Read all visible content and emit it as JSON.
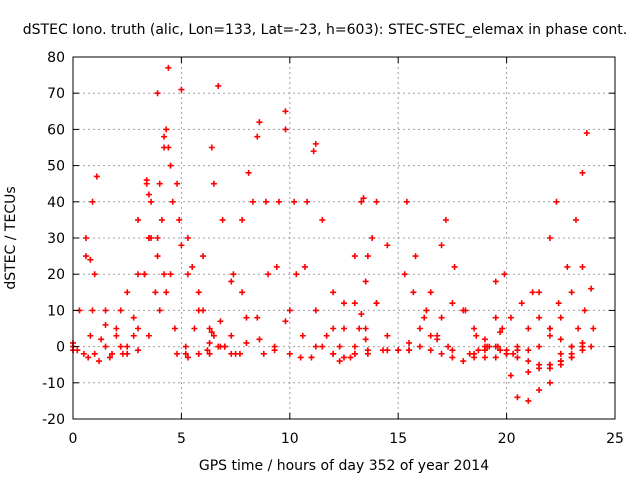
{
  "chart_data": {
    "type": "scatter",
    "title": "dSTEC Iono. truth (alic, Lon=133, Lat=-23, h=603): STEC-STEC_elemax in phase cont.",
    "xlabel": "GPS time / hours of day 352 of year 2014",
    "ylabel": "dSTEC  / TECUs",
    "xlim": [
      0,
      25
    ],
    "ylim": [
      -20,
      80
    ],
    "xticks": [
      0,
      5,
      10,
      15,
      20,
      25
    ],
    "yticks": [
      -20,
      -10,
      0,
      10,
      20,
      30,
      40,
      50,
      60,
      70,
      80
    ],
    "grid": true,
    "marker": "+",
    "color": "#ff0000",
    "series": [
      {
        "x": [
          0.0,
          0.3,
          0.6,
          0.9,
          1.1
        ],
        "y": [
          0,
          10,
          25,
          40,
          47
        ]
      },
      {
        "x": [
          0.0,
          0.5,
          1.0,
          1.5,
          2.0,
          2.5,
          3.0,
          3.4
        ],
        "y": [
          -1,
          -2,
          -2,
          0,
          5,
          15,
          35,
          46
        ]
      },
      {
        "x": [
          0.6,
          0.9,
          1.3,
          1.8,
          2.3,
          2.8,
          3.3,
          3.6
        ],
        "y": [
          30,
          10,
          2,
          -2,
          -2,
          3,
          20,
          40
        ]
      },
      {
        "x": [
          0.8,
          1.0,
          1.5,
          2.0,
          2.5,
          3.0,
          3.5,
          3.9
        ],
        "y": [
          24,
          20,
          10,
          3,
          0,
          5,
          30,
          70
        ]
      },
      {
        "x": [
          0.0,
          0.8,
          1.5,
          2.2,
          3.0,
          3.5,
          4.0,
          4.2
        ],
        "y": [
          1,
          3,
          6,
          10,
          20,
          30,
          45,
          55
        ]
      },
      {
        "x": [
          0.2,
          0.7,
          1.2,
          1.7,
          2.2,
          2.8,
          3.3
        ],
        "y": [
          -1,
          -3,
          -4,
          -3,
          0,
          8,
          20
        ]
      },
      {
        "x": [
          3.4,
          3.6,
          3.9,
          4.1,
          4.3,
          4.4
        ],
        "y": [
          45,
          30,
          25,
          35,
          60,
          77
        ]
      },
      {
        "x": [
          3.5,
          3.9,
          4.3,
          4.7,
          5.2,
          5.8,
          6.3
        ],
        "y": [
          42,
          30,
          15,
          5,
          0,
          -2,
          -2
        ]
      },
      {
        "x": [
          3.8,
          4.2,
          4.6,
          5.0
        ],
        "y": [
          15,
          20,
          40,
          71
        ]
      },
      {
        "x": [
          4.2,
          4.5,
          4.9,
          5.3,
          5.8,
          6.4,
          7.0,
          7.7
        ],
        "y": [
          58,
          50,
          35,
          20,
          10,
          4,
          0,
          -2
        ]
      },
      {
        "x": [
          4.4,
          4.8,
          5.3,
          5.8,
          6.3,
          6.8,
          7.3
        ],
        "y": [
          55,
          45,
          30,
          15,
          5,
          0,
          -2
        ]
      },
      {
        "x": [
          2.5,
          3.0,
          3.5,
          4.0,
          4.5,
          5.0,
          5.5,
          6.0,
          6.5,
          7.0
        ],
        "y": [
          -2,
          -1,
          3,
          10,
          20,
          28,
          22,
          10,
          3,
          0
        ]
      },
      {
        "x": [
          4.8,
          5.2,
          5.6,
          6.0,
          6.4,
          6.7
        ],
        "y": [
          -2,
          -2,
          5,
          25,
          55,
          72
        ]
      },
      {
        "x": [
          6.5,
          6.9,
          7.4,
          8.0,
          8.6,
          9.3,
          10.0
        ],
        "y": [
          45,
          35,
          20,
          8,
          2,
          -1,
          -2
        ]
      },
      {
        "x": [
          5.3,
          5.8,
          6.3,
          6.8,
          7.3,
          7.8,
          8.1
        ],
        "y": [
          -3,
          -2,
          1,
          7,
          18,
          35,
          48
        ]
      },
      {
        "x": [
          6.2,
          6.7,
          7.3,
          7.8,
          8.3,
          8.6
        ],
        "y": [
          -1,
          0,
          3,
          15,
          40,
          62
        ]
      },
      {
        "x": [
          8.5,
          8.9,
          9.4,
          10.0,
          10.6,
          11.2,
          12.0
        ],
        "y": [
          58,
          40,
          22,
          10,
          3,
          0,
          -2
        ]
      },
      {
        "x": [
          7.5,
          8.0,
          8.5,
          9.0,
          9.5,
          9.8
        ],
        "y": [
          -2,
          1,
          8,
          20,
          40,
          65
        ]
      },
      {
        "x": [
          9.8,
          10.2,
          10.7,
          11.2,
          11.7,
          12.3,
          13.0,
          13.6
        ],
        "y": [
          60,
          40,
          22,
          10,
          3,
          0,
          -2,
          -2
        ]
      },
      {
        "x": [
          8.8,
          9.3,
          9.8,
          10.3,
          10.8,
          11.2
        ],
        "y": [
          -2,
          0,
          7,
          20,
          40,
          56
        ]
      },
      {
        "x": [
          11.1,
          11.5,
          12.0,
          12.5,
          13.0,
          13.6,
          14.3
        ],
        "y": [
          54,
          35,
          15,
          5,
          0,
          -1,
          -1
        ]
      },
      {
        "x": [
          10.5,
          11.0,
          11.5,
          12.0,
          12.5,
          13.0,
          13.4
        ],
        "y": [
          -3,
          -3,
          0,
          5,
          12,
          25,
          41
        ]
      },
      {
        "x": [
          12.3,
          12.8,
          13.2,
          13.5,
          13.8,
          14.0
        ],
        "y": [
          -4,
          -3,
          5,
          18,
          30,
          40
        ]
      },
      {
        "x": [
          13.3,
          13.6,
          14.0,
          14.5,
          15.0,
          15.5
        ],
        "y": [
          40,
          25,
          12,
          3,
          -1,
          -1
        ]
      },
      {
        "x": [
          12.0,
          12.5,
          13.0,
          13.5,
          14.0,
          14.5
        ],
        "y": [
          -2,
          -3,
          -2,
          2,
          12,
          28
        ]
      },
      {
        "x": [
          13.0,
          13.3,
          13.5
        ],
        "y": [
          12,
          9,
          5
        ]
      },
      {
        "x": [
          15.4,
          15.8,
          16.3,
          16.8,
          17.3
        ],
        "y": [
          40,
          25,
          10,
          3,
          0
        ]
      },
      {
        "x": [
          15.3,
          15.7,
          16.2,
          16.8,
          17.5,
          18.3,
          19.0,
          19.6
        ],
        "y": [
          20,
          15,
          8,
          2,
          -1,
          -2,
          -1,
          0
        ]
      },
      {
        "x": [
          14.5,
          15.0,
          15.5,
          16.0,
          16.5,
          17.0
        ],
        "y": [
          -1,
          -1,
          1,
          5,
          15,
          28
        ]
      },
      {
        "x": [
          15.5,
          16.0,
          16.5,
          17.0,
          17.5,
          18.0,
          18.5,
          19.0,
          19.5,
          20.0
        ],
        "y": [
          -1,
          0,
          3,
          8,
          12,
          10,
          5,
          2,
          0,
          -1
        ]
      },
      {
        "x": [
          17.2,
          17.6,
          18.1,
          18.6,
          19.1,
          19.7,
          20.3
        ],
        "y": [
          35,
          22,
          10,
          3,
          0,
          -1,
          -2
        ]
      },
      {
        "x": [
          16.5,
          17.0,
          17.5,
          18.0,
          18.5,
          19.0,
          19.5,
          19.9
        ],
        "y": [
          -1,
          -2,
          -3,
          -4,
          -3,
          0,
          8,
          20
        ]
      },
      {
        "x": [
          18.7,
          19.2,
          19.7,
          20.2,
          20.7,
          21.2
        ],
        "y": [
          -1,
          0,
          4,
          8,
          12,
          15
        ]
      },
      {
        "x": [
          19.5,
          19.8,
          20.2,
          20.5,
          21.0,
          21.5,
          22.0
        ],
        "y": [
          18,
          5,
          -8,
          -14,
          -15,
          -12,
          -10
        ]
      },
      {
        "x": [
          18.5,
          19.0,
          19.5,
          20.0,
          20.5,
          21.0,
          21.5,
          22.0,
          22.3
        ],
        "y": [
          -2,
          -3,
          -3,
          -2,
          0,
          5,
          15,
          30,
          40
        ]
      },
      {
        "x": [
          20.5,
          21.0,
          21.5,
          22.0,
          22.5,
          23.0,
          23.5
        ],
        "y": [
          -1,
          -1,
          0,
          3,
          8,
          15,
          22
        ]
      },
      {
        "x": [
          22.0,
          22.4,
          22.8,
          23.2,
          23.5,
          23.7
        ],
        "y": [
          5,
          12,
          22,
          35,
          48,
          59
        ]
      },
      {
        "x": [
          21.5,
          22.0,
          22.5,
          23.0,
          23.5,
          24.0
        ],
        "y": [
          8,
          5,
          2,
          0,
          1,
          5
        ]
      },
      {
        "x": [
          22.5,
          23.0,
          23.3,
          23.6,
          23.9
        ],
        "y": [
          -2,
          0,
          5,
          10,
          16
        ]
      },
      {
        "x": [
          22.0,
          22.5,
          23.0,
          23.5,
          23.9
        ],
        "y": [
          -5,
          -4,
          -2,
          0,
          0
        ]
      },
      {
        "x": [
          21.0,
          21.5,
          22.0,
          22.5,
          23.0
        ],
        "y": [
          -7,
          -6,
          -5,
          -4,
          -3
        ]
      },
      {
        "x": [
          20.0,
          20.5,
          21.0,
          21.5,
          22.0,
          22.5,
          23.0,
          23.5
        ],
        "y": [
          -2,
          -3,
          -4,
          -5,
          -6,
          -5,
          -3,
          -1
        ]
      }
    ]
  }
}
